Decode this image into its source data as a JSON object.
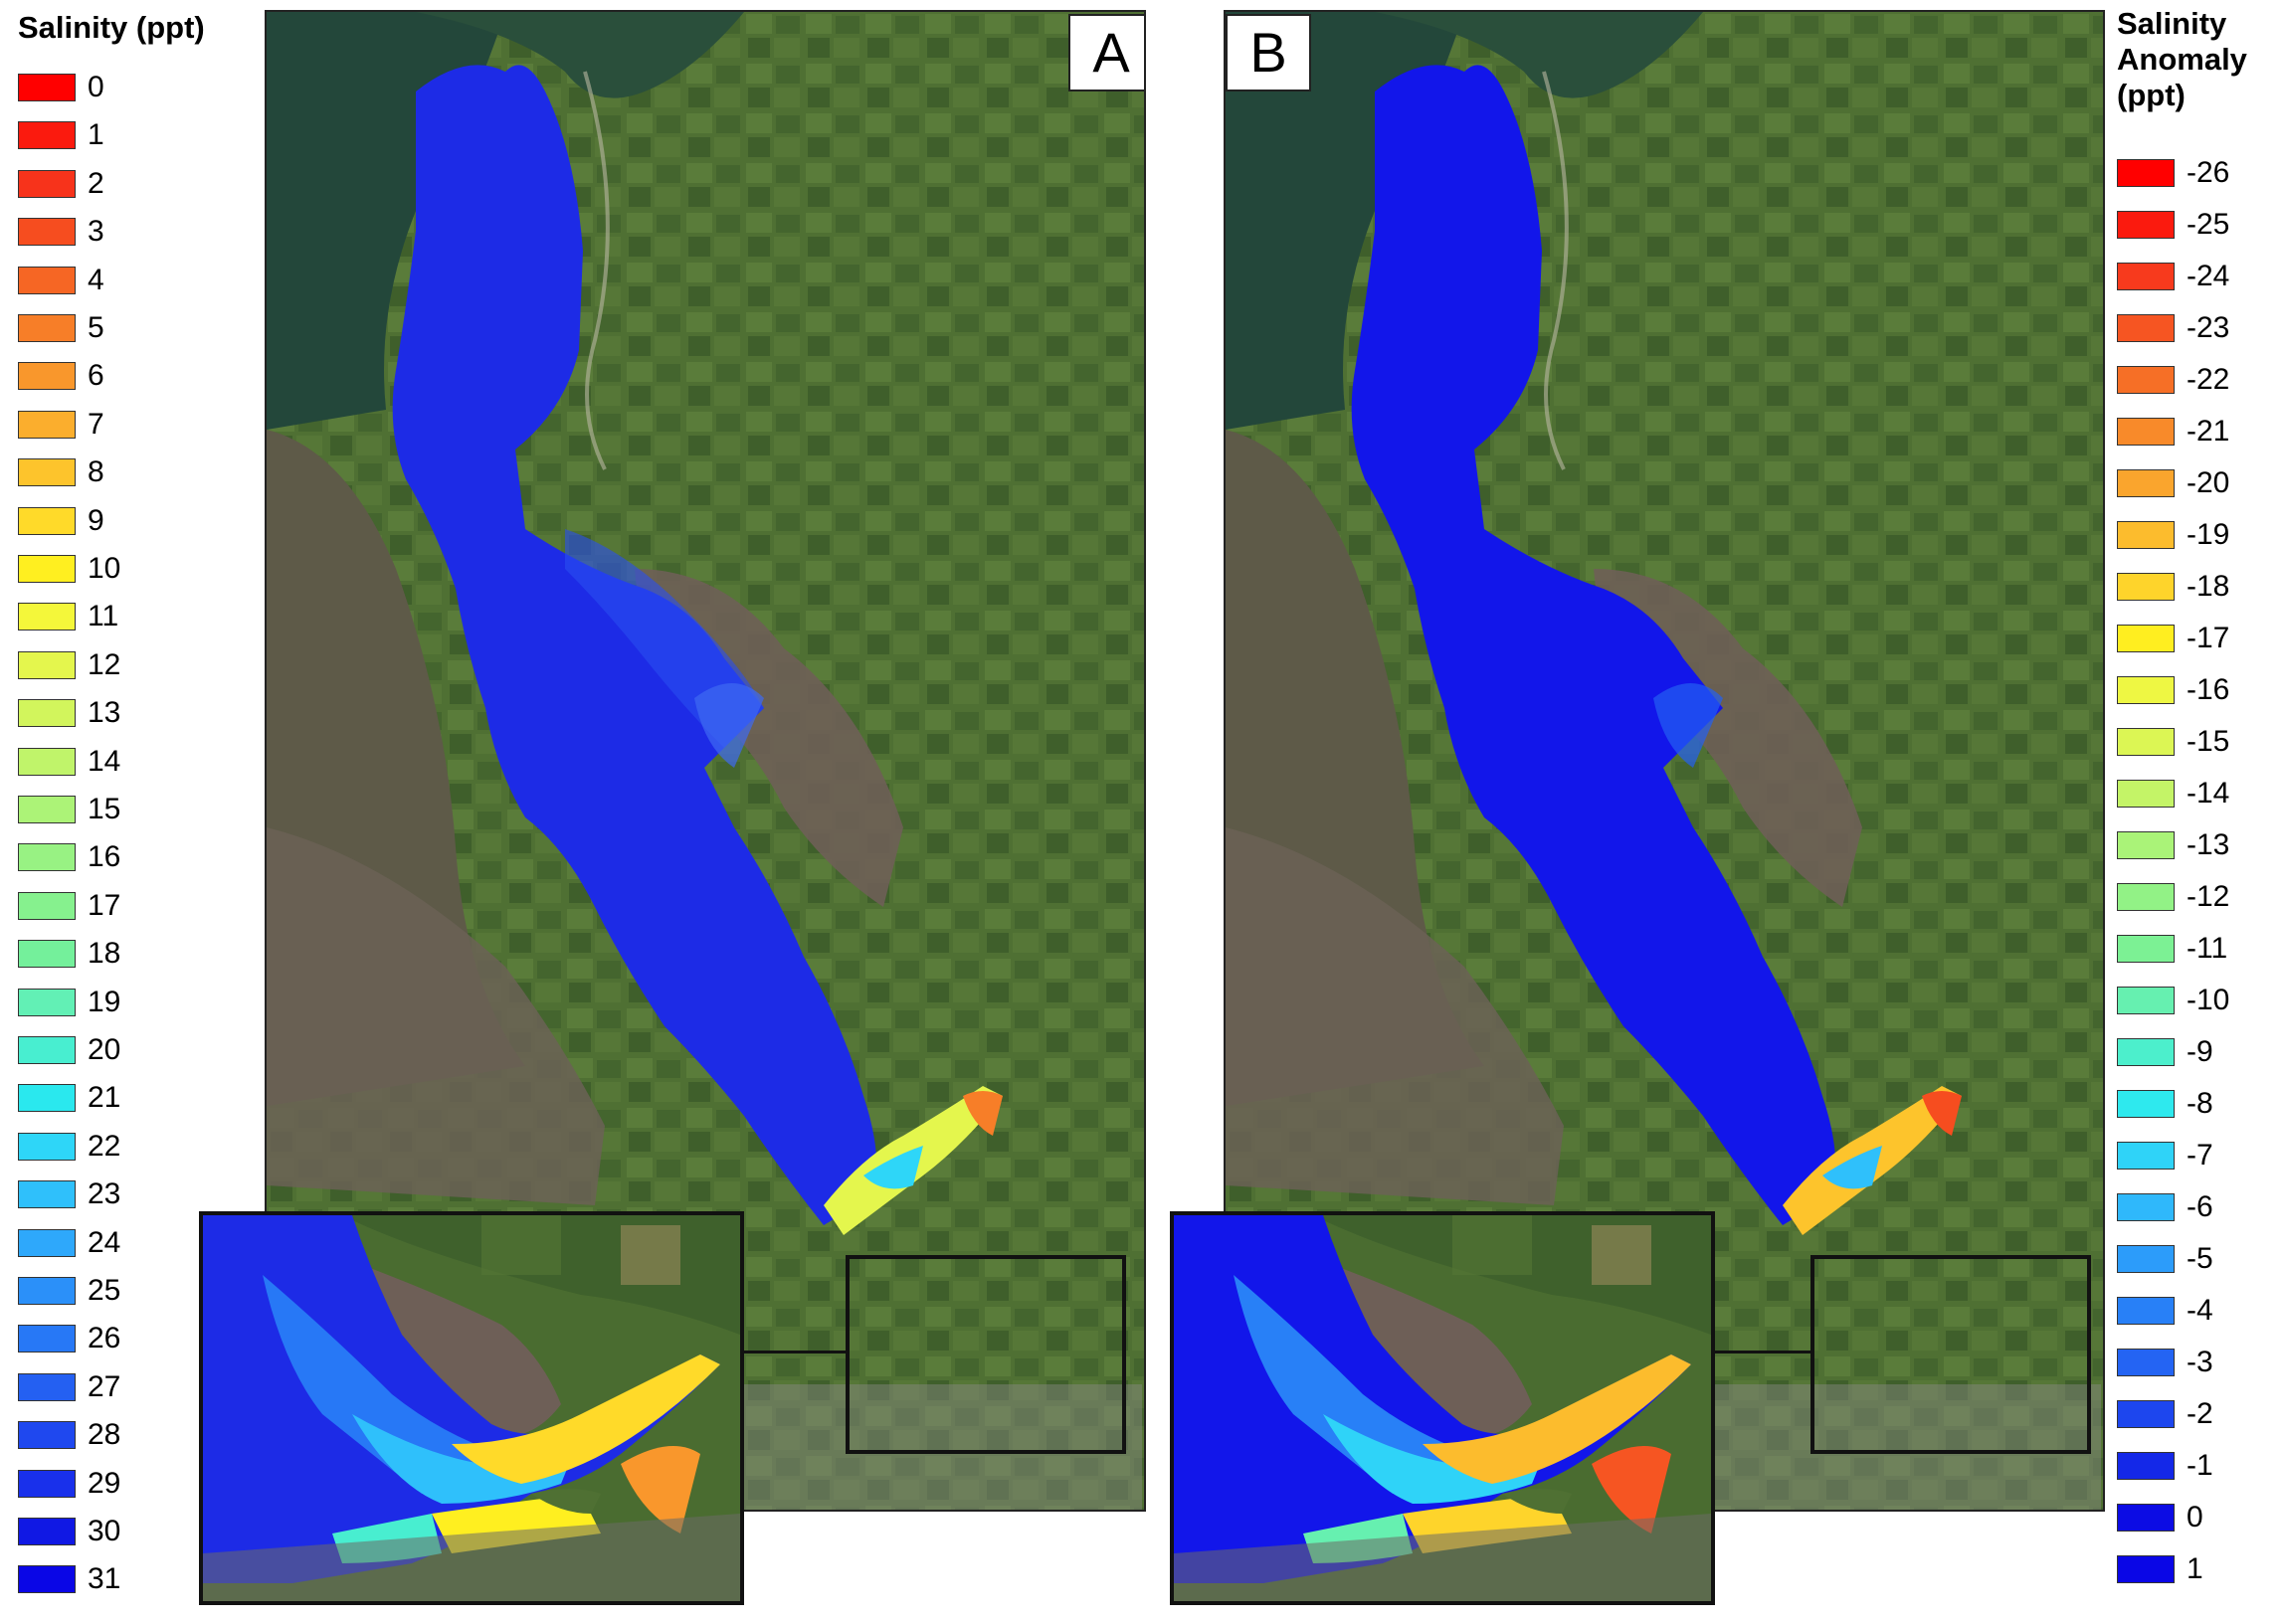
{
  "legend_left": {
    "title": "Salinity (ppt)",
    "items": [
      {
        "label": "0",
        "color": "#ff0000"
      },
      {
        "label": "1",
        "color": "#fb1a0e"
      },
      {
        "label": "2",
        "color": "#f7331b"
      },
      {
        "label": "3",
        "color": "#f64d1f"
      },
      {
        "label": "4",
        "color": "#f66624"
      },
      {
        "label": "5",
        "color": "#f77e28"
      },
      {
        "label": "6",
        "color": "#f9972c"
      },
      {
        "label": "7",
        "color": "#fbae2d"
      },
      {
        "label": "8",
        "color": "#fdc42c"
      },
      {
        "label": "9",
        "color": "#ffda29"
      },
      {
        "label": "10",
        "color": "#ffef20"
      },
      {
        "label": "11",
        "color": "#f4f73a"
      },
      {
        "label": "12",
        "color": "#e4f64d"
      },
      {
        "label": "13",
        "color": "#d2f55c"
      },
      {
        "label": "14",
        "color": "#c0f46a"
      },
      {
        "label": "15",
        "color": "#acf377"
      },
      {
        "label": "16",
        "color": "#98f283"
      },
      {
        "label": "17",
        "color": "#86f18e"
      },
      {
        "label": "18",
        "color": "#74f09b"
      },
      {
        "label": "19",
        "color": "#62f0b5"
      },
      {
        "label": "20",
        "color": "#48eed0"
      },
      {
        "label": "21",
        "color": "#2ae8ee"
      },
      {
        "label": "22",
        "color": "#2ed6f8"
      },
      {
        "label": "23",
        "color": "#2fc0fb"
      },
      {
        "label": "24",
        "color": "#2ea8fb"
      },
      {
        "label": "25",
        "color": "#2b90f9"
      },
      {
        "label": "26",
        "color": "#2778f6"
      },
      {
        "label": "27",
        "color": "#2460f2"
      },
      {
        "label": "28",
        "color": "#1f48ef"
      },
      {
        "label": "29",
        "color": "#1930eb"
      },
      {
        "label": "30",
        "color": "#1018e4"
      },
      {
        "label": "31",
        "color": "#0a06e6"
      }
    ]
  },
  "legend_right": {
    "title_lines": [
      "Salinity",
      "Anomaly",
      "(ppt)"
    ],
    "items": [
      {
        "label": "-26",
        "color": "#ff0000"
      },
      {
        "label": "-25",
        "color": "#fb1a0e"
      },
      {
        "label": "-24",
        "color": "#f73a1d"
      },
      {
        "label": "-23",
        "color": "#f65522"
      },
      {
        "label": "-22",
        "color": "#f66f26"
      },
      {
        "label": "-21",
        "color": "#f88a2a"
      },
      {
        "label": "-20",
        "color": "#faa52d"
      },
      {
        "label": "-19",
        "color": "#fcbc2d"
      },
      {
        "label": "-18",
        "color": "#fed42b"
      },
      {
        "label": "-17",
        "color": "#ffee20"
      },
      {
        "label": "-16",
        "color": "#eef743"
      },
      {
        "label": "-15",
        "color": "#dcf654"
      },
      {
        "label": "-14",
        "color": "#c4f467"
      },
      {
        "label": "-13",
        "color": "#aaf378"
      },
      {
        "label": "-12",
        "color": "#92f286"
      },
      {
        "label": "-11",
        "color": "#7cf194"
      },
      {
        "label": "-10",
        "color": "#66f0b0"
      },
      {
        "label": "-9",
        "color": "#4cefcc"
      },
      {
        "label": "-8",
        "color": "#2ee9ee"
      },
      {
        "label": "-7",
        "color": "#2fd3f8"
      },
      {
        "label": "-6",
        "color": "#2fb8fb"
      },
      {
        "label": "-5",
        "color": "#2c9cfa"
      },
      {
        "label": "-4",
        "color": "#2880f7"
      },
      {
        "label": "-3",
        "color": "#2464f3"
      },
      {
        "label": "-2",
        "color": "#1d46ee"
      },
      {
        "label": "-1",
        "color": "#1428e8"
      },
      {
        "label": "0",
        "color": "#0c0ce4"
      },
      {
        "label": "1",
        "color": "#0a06e6"
      }
    ]
  },
  "panel_a": {
    "label": "A"
  },
  "panel_b": {
    "label": "B"
  },
  "colors": {
    "water_deep": "#1d2be6",
    "water_deep_b": "#1216ea",
    "land_green": "#4d6d33",
    "land_dark": "#2f4d2b",
    "rock": "#6e5f57",
    "sea_dark": "#234734"
  }
}
